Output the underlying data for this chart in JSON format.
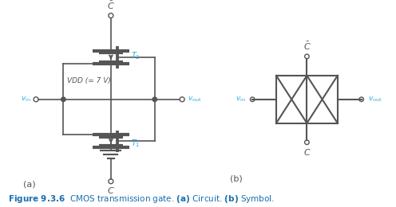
{
  "fig_width": 4.96,
  "fig_height": 2.6,
  "dpi": 100,
  "bg_color": "#ffffff",
  "circuit_color": "#555555",
  "label_color_cyan": "#29abe2",
  "caption_color": "#1a6faf",
  "label_a": "(a)",
  "label_b": "(b)",
  "vdd_text": "VDD (= 7 V)",
  "t1_text": "T",
  "t2_text": "T",
  "vin_text": "v_in",
  "vout_text": "v_out"
}
